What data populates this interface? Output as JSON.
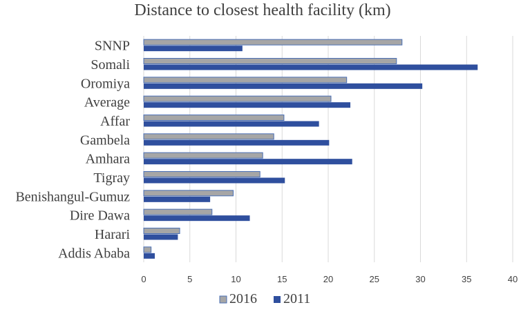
{
  "chart_data": {
    "type": "bar",
    "orientation": "horizontal",
    "title": "Distance to closest health facility (km)",
    "categories": [
      "SNNP",
      "Somali",
      "Oromiya",
      "Average",
      "Affar",
      "Gambela",
      "Amhara",
      "Tigray",
      "Benishangul-Gumuz",
      "Dire Dawa",
      "Harari",
      "Addis Ababa"
    ],
    "series": [
      {
        "name": "2016",
        "color": "#a6a6a6",
        "border": "#4a6fb5",
        "values": [
          28.0,
          27.4,
          22.0,
          20.3,
          15.2,
          14.1,
          12.9,
          12.6,
          9.7,
          7.4,
          3.9,
          0.8
        ]
      },
      {
        "name": "2011",
        "color": "#2f4f9e",
        "border": "#2f4f9e",
        "values": [
          10.7,
          36.2,
          30.2,
          22.4,
          19.0,
          20.1,
          22.6,
          15.3,
          7.2,
          11.5,
          3.7,
          1.2
        ]
      }
    ],
    "xlim": [
      0,
      40
    ],
    "xticks": [
      0,
      5,
      10,
      15,
      20,
      25,
      30,
      35,
      40
    ],
    "grid": "vertical",
    "legend_position": "bottom"
  }
}
